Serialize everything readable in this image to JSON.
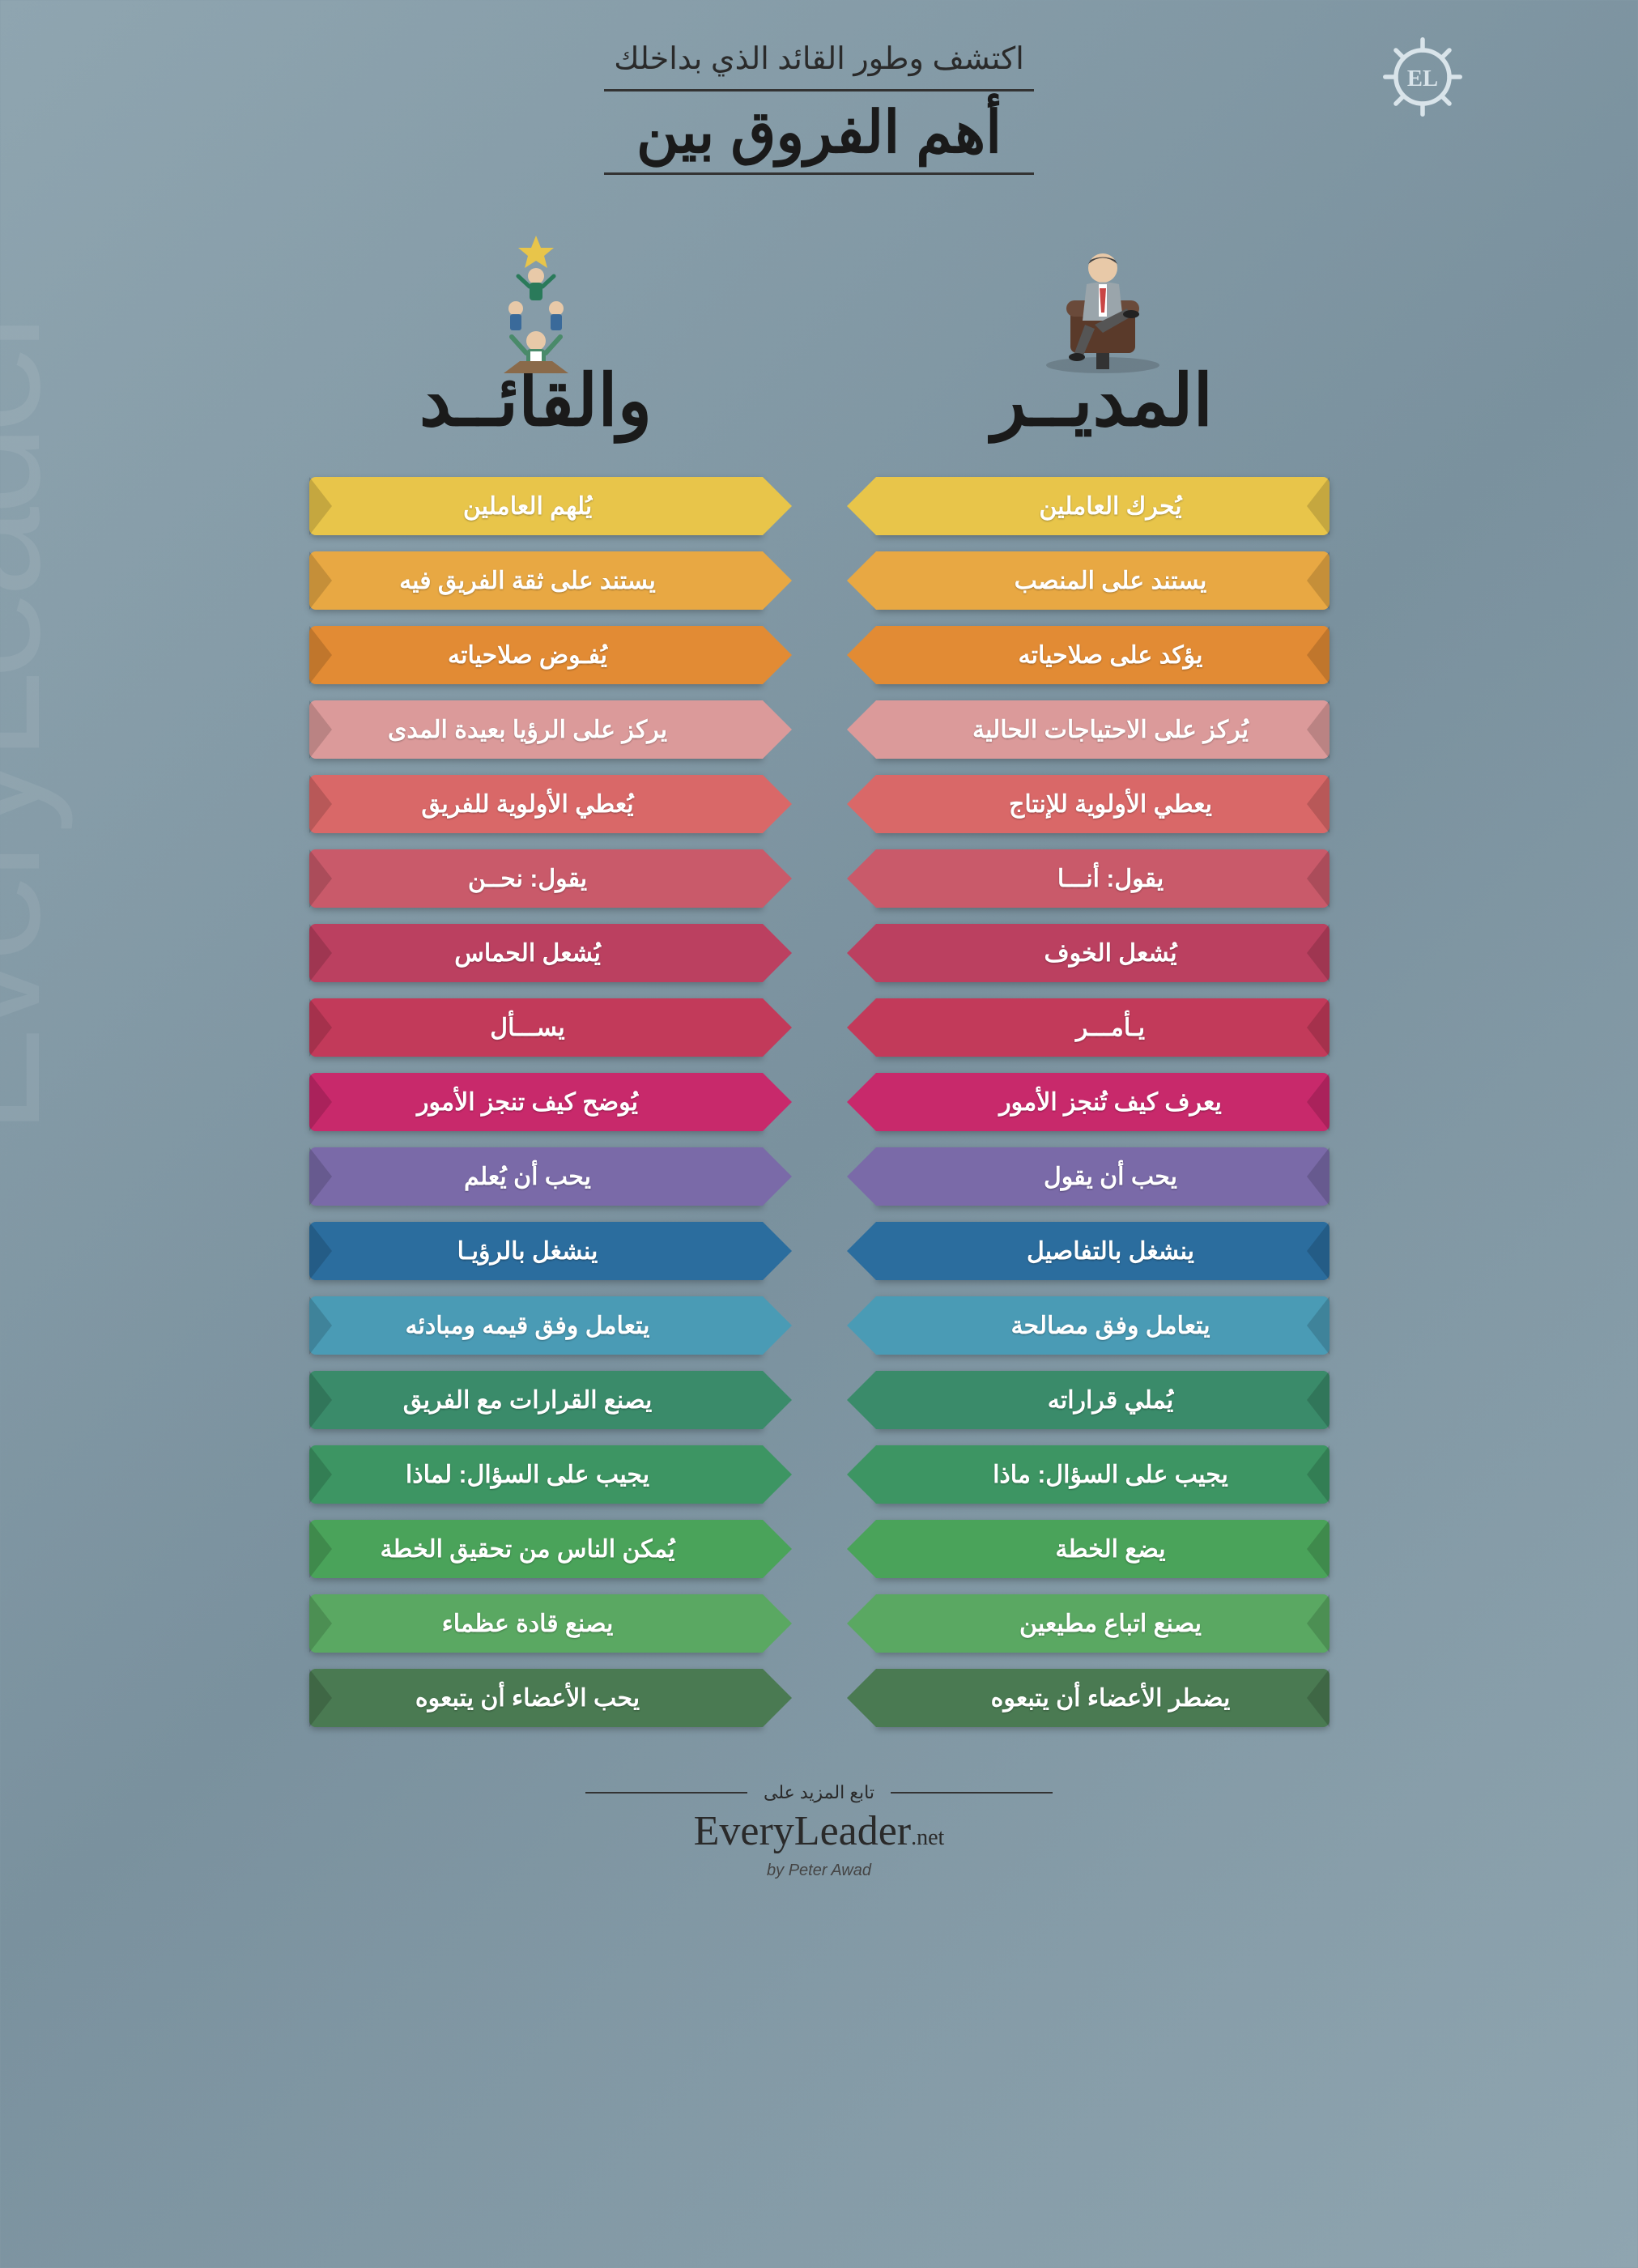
{
  "watermark": "EveryLeader",
  "header": {
    "subtitle": "اكتشف وطور القائد الذي بداخلك",
    "title": "أهم الفروق بين"
  },
  "columns": {
    "manager": {
      "title": "المديــر"
    },
    "leader": {
      "title": "والقائــد"
    }
  },
  "row_colors": [
    "#e8c54a",
    "#e8a843",
    "#e28b34",
    "#db9a9a",
    "#d96868",
    "#c95a6a",
    "#bb4060",
    "#c23a5a",
    "#c8296b",
    "#7a6aa8",
    "#2b6d9e",
    "#4a9bb5",
    "#3a8b6a",
    "#3d9563",
    "#4aa35a",
    "#5aa862",
    "#4a7a52"
  ],
  "rows": [
    {
      "manager": "يُحرك العاملين",
      "leader": "يُلهم العاملين"
    },
    {
      "manager": "يستند على المنصب",
      "leader": "يستند على ثقة الفريق فيه"
    },
    {
      "manager": "يؤكد على صلاحياته",
      "leader": "يُفـوض صلاحياته"
    },
    {
      "manager": "يُركز على الاحتياجات الحالية",
      "leader": "يركز على الرؤيا بعيدة المدى"
    },
    {
      "manager": "يعطي الأولوية للإنتاج",
      "leader": "يُعطي الأولوية للفريق"
    },
    {
      "manager": "يقول: أنـــا",
      "leader": "يقول: نحــن"
    },
    {
      "manager": "يُشعل الخوف",
      "leader": "يُشعل الحماس"
    },
    {
      "manager": "يـأمـــر",
      "leader": "يســـأل"
    },
    {
      "manager": "يعرف كيف تُنجز الأمور",
      "leader": "يُوضح كيف تنجز الأمور"
    },
    {
      "manager": "يحب أن يقول",
      "leader": "يحب أن يُعلم"
    },
    {
      "manager": "ينشغل بالتفاصيل",
      "leader": "ينشغل بالرؤيـا"
    },
    {
      "manager": "يتعامل وفق مصالحة",
      "leader": "يتعامل وفق قيمه ومبادئه"
    },
    {
      "manager": "يُملي قراراته",
      "leader": "يصنع القرارات مع الفريق"
    },
    {
      "manager": "يجيب على السؤال: ماذا",
      "leader": "يجيب على السؤال: لماذا"
    },
    {
      "manager": "يضع الخطة",
      "leader": "يُمكن الناس من تحقيق الخطة"
    },
    {
      "manager": "يصنع اتباع مطيعين",
      "leader": "يصنع قادة عظماء"
    },
    {
      "manager": "يضطر الأعضاء أن يتبعوه",
      "leader": "يحب الأعضاء أن يتبعوه"
    }
  ],
  "footer": {
    "tagline": "تابع المزيد على",
    "brand": "EveryLeader",
    "brand_suffix": ".net",
    "author": "by Peter Awad"
  }
}
